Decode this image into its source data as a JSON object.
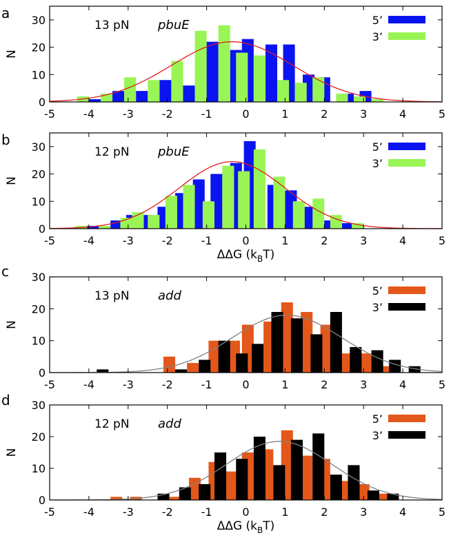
{
  "figure": {
    "x_axis_title": "ΔΔG (k",
    "x_axis_title_sub": "B",
    "x_axis_title_end": "T)",
    "y_axis_title": "N"
  },
  "chart_data": [
    {
      "type": "bar",
      "panel": "a",
      "annotation_force": "13 pN",
      "annotation_gene": "pbuE",
      "xlim": [
        -5,
        5
      ],
      "ylim": [
        0,
        35
      ],
      "xticks": [
        -5,
        -4,
        -3,
        -2,
        -1,
        0,
        1,
        2,
        3,
        4,
        5
      ],
      "yticks": [
        0,
        10,
        20,
        30
      ],
      "bin_width": 0.3,
      "series": [
        {
          "name": "5’",
          "color": "#0a14f0",
          "x": [
            -3.85,
            -3.25,
            -2.65,
            -2.05,
            -1.45,
            -0.85,
            -0.25,
            0.05,
            0.65,
            1.1,
            1.6,
            2.0,
            2.6,
            3.05
          ],
          "values": [
            1,
            4,
            4,
            8,
            6,
            22,
            19,
            23,
            21,
            21,
            10,
            9,
            3,
            4
          ]
        },
        {
          "name": "3’",
          "color": "#99f555",
          "x": [
            -4.15,
            -3.55,
            -2.95,
            -2.35,
            -1.75,
            -1.15,
            -0.55,
            -0.1,
            0.35,
            0.95,
            1.4,
            1.85,
            2.45,
            2.9,
            3.35
          ],
          "values": [
            2,
            3,
            9,
            8,
            15,
            26,
            28,
            18,
            17,
            8,
            7,
            9,
            3,
            2,
            1
          ]
        }
      ],
      "fit": {
        "type": "gaussian",
        "color": "#e01c1c",
        "amplitude": 22,
        "mean": -0.35,
        "sigma": 1.55
      }
    },
    {
      "type": "bar",
      "panel": "b",
      "annotation_force": "12 pN",
      "annotation_gene": "pbuE",
      "xlim": [
        -5,
        5
      ],
      "ylim": [
        0,
        35
      ],
      "xticks": [
        -5,
        -4,
        -3,
        -2,
        -1,
        0,
        1,
        2,
        3,
        4,
        5
      ],
      "yticks": [
        0,
        10,
        20,
        30
      ],
      "bin_width": 0.3,
      "series": [
        {
          "name": "5’",
          "color": "#0a14f0",
          "x": [
            -3.9,
            -3.3,
            -2.9,
            -2.55,
            -2.1,
            -1.65,
            -1.2,
            -0.75,
            -0.25,
            0.1,
            0.7,
            1.15,
            1.6,
            2.1,
            2.6
          ],
          "values": [
            1,
            3,
            5,
            5,
            8,
            13,
            18,
            20,
            24,
            32,
            16,
            14,
            8,
            3,
            2
          ]
        },
        {
          "name": "3’",
          "color": "#99f555",
          "x": [
            -4.2,
            -3.6,
            -3.05,
            -2.75,
            -2.35,
            -1.9,
            -1.45,
            -0.95,
            -0.45,
            -0.05,
            0.35,
            0.85,
            1.35,
            1.85,
            2.3,
            2.85
          ],
          "values": [
            1,
            1,
            4,
            6,
            5,
            12,
            16,
            10,
            23,
            21,
            29,
            19,
            10,
            11,
            5,
            2
          ]
        }
      ],
      "fit": {
        "type": "gaussian",
        "color": "#e01c1c",
        "amplitude": 24.5,
        "mean": -0.35,
        "sigma": 1.35
      }
    },
    {
      "type": "bar",
      "panel": "c",
      "annotation_force": "13 pN",
      "annotation_gene": "add",
      "xlim": [
        -5,
        5
      ],
      "ylim": [
        0,
        30
      ],
      "xticks": [
        -5,
        -4,
        -3,
        -2,
        -1,
        0,
        1,
        2,
        3,
        4,
        5
      ],
      "yticks": [
        0,
        10,
        20,
        30
      ],
      "bin_width": 0.3,
      "series": [
        {
          "name": "5’",
          "color": "#e4571a",
          "x": [
            -1.95,
            -1.35,
            -0.8,
            -0.3,
            0.05,
            0.6,
            1.05,
            1.55,
            2.05,
            2.6,
            3.05,
            3.5
          ],
          "values": [
            5,
            3,
            10,
            10,
            15,
            16,
            22,
            19,
            15,
            6,
            6,
            2
          ]
        },
        {
          "name": "3’",
          "color": "#000000",
          "x": [
            -3.65,
            -1.65,
            -1.05,
            -0.55,
            -0.1,
            0.3,
            0.8,
            1.3,
            1.8,
            2.3,
            2.8,
            3.35,
            3.8,
            4.3
          ],
          "values": [
            1,
            1,
            4,
            10,
            6,
            9,
            19,
            17,
            12,
            19,
            8,
            7,
            4,
            2
          ]
        }
      ],
      "fit": {
        "type": "gaussian",
        "color": "#808080",
        "amplitude": 18,
        "mean": 1.05,
        "sigma": 1.4
      }
    },
    {
      "type": "bar",
      "panel": "d",
      "annotation_force": "12 pN",
      "annotation_gene": "add",
      "xlim": [
        -5,
        5
      ],
      "ylim": [
        0,
        30
      ],
      "xticks": [
        -5,
        -4,
        -3,
        -2,
        -1,
        0,
        1,
        2,
        3,
        4,
        5
      ],
      "yticks": [
        0,
        10,
        20,
        30
      ],
      "bin_width": 0.3,
      "series": [
        {
          "name": "5’",
          "color": "#e4571a",
          "x": [
            -3.3,
            -2.8,
            -1.8,
            -1.3,
            -0.8,
            -0.35,
            0.05,
            0.55,
            1.05,
            1.55,
            2.0,
            2.5,
            3.0,
            3.5
          ],
          "values": [
            1,
            1,
            1,
            7,
            12,
            9,
            15,
            16,
            22,
            14,
            13,
            6,
            5,
            2
          ]
        },
        {
          "name": "3’",
          "color": "#000000",
          "x": [
            -2.1,
            -1.55,
            -1.05,
            -0.65,
            -0.1,
            0.35,
            0.85,
            1.3,
            1.85,
            2.3,
            2.75,
            3.25,
            3.75
          ],
          "values": [
            2,
            4,
            5,
            15,
            13,
            20,
            11,
            19,
            21,
            8,
            11,
            3,
            2
          ]
        }
      ],
      "fit": {
        "type": "gaussian",
        "color": "#808080",
        "amplitude": 18.5,
        "mean": 0.85,
        "sigma": 1.35
      }
    }
  ]
}
